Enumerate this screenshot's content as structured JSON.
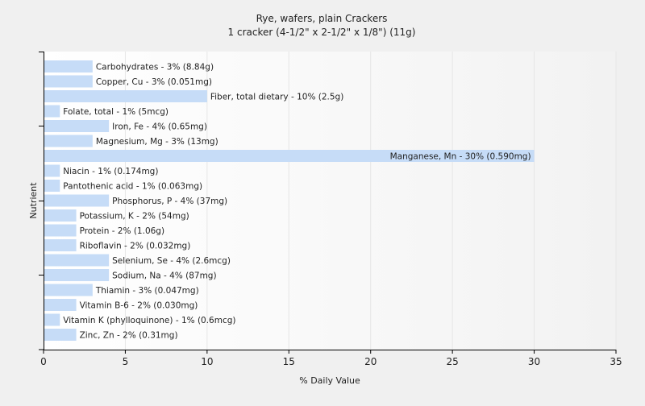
{
  "chart_data": {
    "type": "bar",
    "orientation": "horizontal",
    "title": "Rye, wafers, plain Crackers",
    "subtitle": "1 cracker (4-1/2\" x 2-1/2\" x 1/8\") (11g)",
    "xlabel": "% Daily Value",
    "ylabel": "Nutrient",
    "xlim": [
      0,
      35
    ],
    "xticks": [
      0,
      5,
      10,
      15,
      20,
      25,
      30,
      35
    ],
    "grid": true,
    "bar_color": "#c6dcf7",
    "categories": [
      "Carbohydrates",
      "Copper, Cu",
      "Fiber, total dietary",
      "Folate, total",
      "Iron, Fe",
      "Magnesium, Mg",
      "Manganese, Mn",
      "Niacin",
      "Pantothenic acid",
      "Phosphorus, P",
      "Potassium, K",
      "Protein",
      "Riboflavin",
      "Selenium, Se",
      "Sodium, Na",
      "Thiamin",
      "Vitamin B-6",
      "Vitamin K (phylloquinone)",
      "Zinc, Zn"
    ],
    "values": [
      3,
      3,
      10,
      1,
      4,
      3,
      30,
      1,
      1,
      4,
      2,
      2,
      2,
      4,
      4,
      3,
      2,
      1,
      2
    ],
    "labels": [
      "Carbohydrates - 3% (8.84g)",
      "Copper, Cu - 3% (0.051mg)",
      "Fiber, total dietary - 10% (2.5g)",
      "Folate, total - 1% (5mcg)",
      "Iron, Fe - 4% (0.65mg)",
      "Magnesium, Mg - 3% (13mg)",
      "Manganese, Mn - 30% (0.590mg)",
      "Niacin - 1% (0.174mg)",
      "Pantothenic acid - 1% (0.063mg)",
      "Phosphorus, P - 4% (37mg)",
      "Potassium, K - 2% (54mg)",
      "Protein - 2% (1.06g)",
      "Riboflavin - 2% (0.032mg)",
      "Selenium, Se - 4% (2.6mcg)",
      "Sodium, Na - 4% (87mg)",
      "Thiamin - 3% (0.047mg)",
      "Vitamin B-6 - 2% (0.030mg)",
      "Vitamin K (phylloquinone) - 1% (0.6mcg)",
      "Zinc, Zn - 2% (0.31mg)"
    ]
  }
}
